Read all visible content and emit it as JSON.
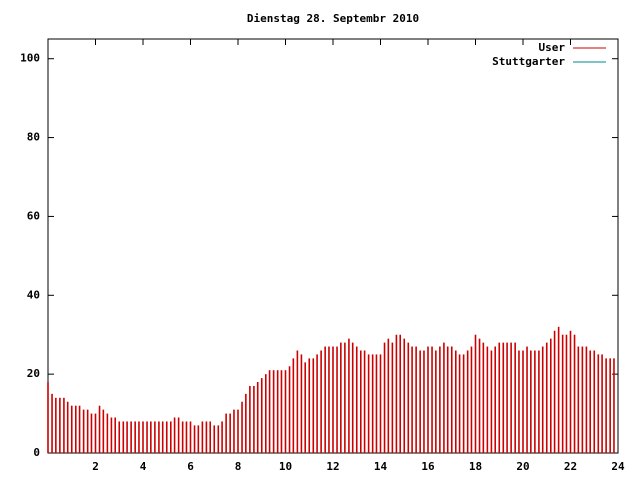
{
  "chart_data": {
    "type": "impulse",
    "title": "Dienstag 28. Septembr 2010",
    "xlim": [
      0,
      24
    ],
    "xticks": [
      2,
      4,
      6,
      8,
      10,
      12,
      14,
      16,
      18,
      20,
      22,
      24
    ],
    "ylim": [
      0,
      105
    ],
    "yticks": [
      0,
      20,
      40,
      60,
      80,
      100
    ],
    "legend": "upper right",
    "x": [
      0,
      0.17,
      0.33,
      0.5,
      0.67,
      0.83,
      1,
      1.17,
      1.33,
      1.5,
      1.67,
      1.83,
      2,
      2.17,
      2.33,
      2.5,
      2.67,
      2.83,
      3,
      3.17,
      3.33,
      3.5,
      3.67,
      3.83,
      4,
      4.17,
      4.33,
      4.5,
      4.67,
      4.83,
      5,
      5.17,
      5.33,
      5.5,
      5.67,
      5.83,
      6,
      6.17,
      6.33,
      6.5,
      6.67,
      6.83,
      7,
      7.17,
      7.33,
      7.5,
      7.67,
      7.83,
      8,
      8.17,
      8.33,
      8.5,
      8.67,
      8.83,
      9,
      9.17,
      9.33,
      9.5,
      9.67,
      9.83,
      10,
      10.17,
      10.33,
      10.5,
      10.67,
      10.83,
      11,
      11.17,
      11.33,
      11.5,
      11.67,
      11.83,
      12,
      12.17,
      12.33,
      12.5,
      12.67,
      12.83,
      13,
      13.17,
      13.33,
      13.5,
      13.67,
      13.83,
      14,
      14.17,
      14.33,
      14.5,
      14.67,
      14.83,
      15,
      15.17,
      15.33,
      15.5,
      15.67,
      15.83,
      16,
      16.17,
      16.33,
      16.5,
      16.67,
      16.83,
      17,
      17.17,
      17.33,
      17.5,
      17.67,
      17.83,
      18,
      18.17,
      18.33,
      18.5,
      18.67,
      18.83,
      19,
      19.17,
      19.33,
      19.5,
      19.67,
      19.83,
      20,
      20.17,
      20.33,
      20.5,
      20.67,
      20.83,
      21,
      21.17,
      21.33,
      21.5,
      21.67,
      21.83,
      22,
      22.17,
      22.33,
      22.5,
      22.67,
      22.83,
      23,
      23.17,
      23.33,
      23.5,
      23.67,
      23.83
    ],
    "series": [
      {
        "name": "User",
        "color": "#cc0000",
        "values": [
          18,
          15,
          14,
          14,
          14,
          13,
          12,
          12,
          12,
          11,
          11,
          10,
          10,
          12,
          11,
          10,
          9,
          9,
          8,
          8,
          8,
          8,
          8,
          8,
          8,
          8,
          8,
          8,
          8,
          8,
          8,
          8,
          9,
          9,
          8,
          8,
          8,
          7,
          7,
          8,
          8,
          8,
          7,
          7,
          8,
          10,
          10,
          11,
          11,
          13,
          15,
          17,
          17,
          18,
          19,
          20,
          21,
          21,
          21,
          21,
          21,
          22,
          24,
          26,
          25,
          23,
          24,
          24,
          25,
          26,
          27,
          27,
          27,
          27,
          28,
          28,
          29,
          28,
          27,
          26,
          26,
          25,
          25,
          25,
          25,
          28,
          29,
          28,
          30,
          30,
          29,
          28,
          27,
          27,
          26,
          26,
          27,
          27,
          26,
          27,
          28,
          27,
          27,
          26,
          25,
          25,
          26,
          27,
          30,
          29,
          28,
          27,
          26,
          27,
          28,
          28,
          28,
          28,
          28,
          26,
          26,
          27,
          26,
          26,
          26,
          27,
          28,
          29,
          31,
          32,
          30,
          30,
          31,
          30,
          27,
          27,
          27,
          26,
          26,
          25,
          25,
          24,
          24,
          24
        ]
      },
      {
        "name": "Stuttgarter",
        "color": "#008b8b"
      }
    ]
  }
}
